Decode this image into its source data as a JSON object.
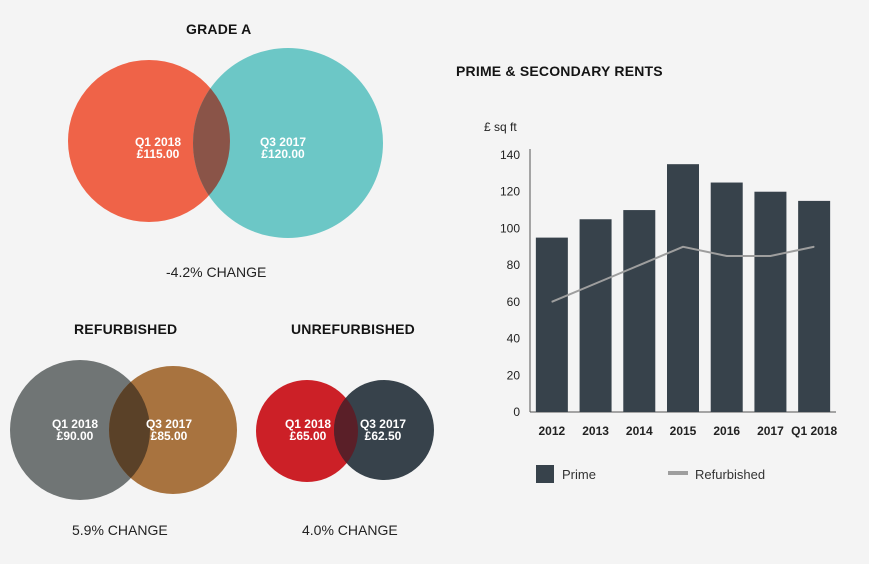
{
  "grade_a": {
    "title": "GRADE A",
    "left": {
      "period": "Q1 2018",
      "value": "£115.00",
      "color": "#ef6348"
    },
    "right": {
      "period": "Q3 2017",
      "value": "£120.00",
      "color": "#6cc7c6"
    },
    "overlap_color": "#8a5448",
    "change": "-4.2% CHANGE"
  },
  "refurbished": {
    "title": "REFURBISHED",
    "left": {
      "period": "Q1 2018",
      "value": "£90.00",
      "color": "#707575"
    },
    "right": {
      "period": "Q3 2017",
      "value": "£85.00",
      "color": "#a8733f"
    },
    "overlap_color": "#5a4128",
    "change": "5.9% CHANGE"
  },
  "unrefurbished": {
    "title": "UNREFURBISHED",
    "left": {
      "period": "Q1 2018",
      "value": "£65.00",
      "color": "#cc2027"
    },
    "right": {
      "period": "Q3 2017",
      "value": "£62.50",
      "color": "#37424b"
    },
    "overlap_color": "#5a1f28",
    "change": "4.0% CHANGE"
  },
  "chart_data": {
    "type": "bar",
    "title": "PRIME & SECONDARY RENTS",
    "ylabel": "£ sq ft",
    "xlabel": "",
    "ylim": [
      0,
      140
    ],
    "yticks": [
      0,
      20,
      40,
      60,
      80,
      100,
      120,
      140
    ],
    "categories": [
      "2012",
      "2013",
      "2014",
      "2015",
      "2016",
      "2017",
      "Q1 2018"
    ],
    "series": [
      {
        "name": "Prime",
        "type": "bar",
        "color": "#37424b",
        "values": [
          95,
          105,
          110,
          135,
          125,
          120,
          115
        ]
      },
      {
        "name": "Refurbished",
        "type": "line",
        "color": "#9e9e9e",
        "values": [
          60,
          70,
          80,
          90,
          85,
          85,
          90
        ]
      }
    ],
    "legend": "bottom",
    "grid": false
  }
}
